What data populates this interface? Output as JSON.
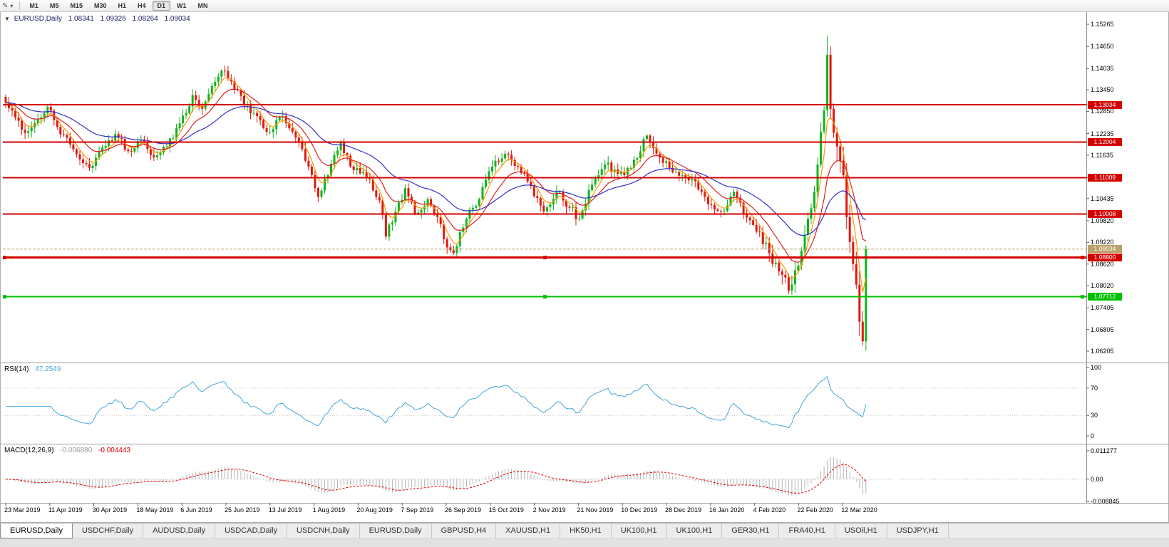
{
  "toolbar": {
    "draw_icon": "✎",
    "caret_icon": "▾",
    "periods": [
      "M1",
      "M5",
      "M15",
      "M30",
      "H1",
      "H4",
      "D1",
      "W1",
      "MN"
    ],
    "active_period": "D1"
  },
  "chart": {
    "title_symbol": "EURUSD,Daily",
    "ohlc": {
      "open": "1.08341",
      "high": "1.09326",
      "low": "1.08264",
      "close": "1.09034"
    }
  },
  "indicators": {
    "rsi_name": "RSI(14)",
    "rsi_value": "47.2549",
    "macd_name": "MACD(12,26,9)",
    "macd_main": "-0.006880",
    "macd_signal": "-0.004443"
  },
  "tabs": {
    "active_index": 0,
    "items": [
      "EURUSD,Daily",
      "USDCHF,Daily",
      "AUDUSD,Daily",
      "USDCAD,Daily",
      "USDCNH,Daily",
      "EURUSD,Daily",
      "GBPUSD,H4",
      "XAUUSD,H1",
      "HK50,H1",
      "UK100,H1",
      "UK100,H1",
      "GER30,H1",
      "FRA40,H1",
      "USOil,H1",
      "USDJPY,H1"
    ]
  },
  "chart_data": {
    "type": "candlestick+indicators",
    "symbol": "EURUSD",
    "timeframe": "Daily",
    "bars": 268,
    "colors": {
      "up": "#10b41c",
      "down": "#e3170d",
      "axis": "#606060"
    },
    "close_keyframes": [
      [
        0,
        1.131
      ],
      [
        3,
        1.1268
      ],
      [
        6,
        1.1225
      ],
      [
        9,
        1.1252
      ],
      [
        13,
        1.1298
      ],
      [
        16,
        1.1242
      ],
      [
        19,
        1.1212
      ],
      [
        23,
        1.1152
      ],
      [
        26,
        1.1128
      ],
      [
        30,
        1.1185
      ],
      [
        34,
        1.1222
      ],
      [
        38,
        1.1175
      ],
      [
        42,
        1.1205
      ],
      [
        46,
        1.1158
      ],
      [
        50,
        1.1188
      ],
      [
        54,
        1.1252
      ],
      [
        58,
        1.133
      ],
      [
        61,
        1.1292
      ],
      [
        64,
        1.1355
      ],
      [
        67,
        1.1398
      ],
      [
        70,
        1.1368
      ],
      [
        74,
        1.1302
      ],
      [
        78,
        1.1272
      ],
      [
        82,
        1.1228
      ],
      [
        86,
        1.1272
      ],
      [
        90,
        1.1212
      ],
      [
        94,
        1.1132
      ],
      [
        97,
        1.1048
      ],
      [
        100,
        1.1108
      ],
      [
        104,
        1.1198
      ],
      [
        108,
        1.1122
      ],
      [
        112,
        1.1102
      ],
      [
        116,
        1.1038
      ],
      [
        118,
        1.0938
      ],
      [
        121,
        1.1008
      ],
      [
        124,
        1.1072
      ],
      [
        127,
        1.1002
      ],
      [
        131,
        1.1042
      ],
      [
        134,
        1.0992
      ],
      [
        137,
        1.0908
      ],
      [
        139,
        1.0892
      ],
      [
        143,
        1.0988
      ],
      [
        147,
        1.1042
      ],
      [
        151,
        1.1132
      ],
      [
        155,
        1.1168
      ],
      [
        159,
        1.1132
      ],
      [
        163,
        1.1078
      ],
      [
        167,
        1.1008
      ],
      [
        171,
        1.1062
      ],
      [
        175,
        1.1018
      ],
      [
        178,
        1.0988
      ],
      [
        182,
        1.1082
      ],
      [
        186,
        1.1138
      ],
      [
        190,
        1.1112
      ],
      [
        194,
        1.1128
      ],
      [
        199,
        1.1218
      ],
      [
        202,
        1.1168
      ],
      [
        206,
        1.1128
      ],
      [
        210,
        1.1108
      ],
      [
        214,
        1.1092
      ],
      [
        218,
        1.1028
      ],
      [
        222,
        1.1008
      ],
      [
        226,
        1.1062
      ],
      [
        229,
        1.1002
      ],
      [
        233,
        1.0952
      ],
      [
        237,
        1.0892
      ],
      [
        241,
        1.0832
      ],
      [
        243,
        1.0788
      ],
      [
        246,
        1.0858
      ],
      [
        249,
        1.0988
      ],
      [
        252,
        1.1138
      ],
      [
        254,
        1.1288
      ],
      [
        255,
        1.1442
      ],
      [
        256,
        1.1292
      ],
      [
        258,
        1.1188
      ],
      [
        260,
        1.1108
      ],
      [
        261,
        1.0992
      ],
      [
        263,
        1.0862
      ],
      [
        265,
        1.0702
      ],
      [
        266,
        1.0648
      ],
      [
        267,
        1.09034
      ]
    ],
    "forced_wicks": [
      {
        "i": 255,
        "high": 1.1495
      },
      {
        "i": 266,
        "low": 1.0636
      },
      {
        "i": 243,
        "low": 1.0778
      }
    ],
    "moving_averages": [
      {
        "period": 5,
        "color": "#ff9900"
      },
      {
        "period": 13,
        "color": "#e02020"
      },
      {
        "period": 34,
        "color": "#3030cc"
      }
    ],
    "levels": [
      {
        "price": 1.13034,
        "label": "1.13034",
        "color": "#d40000",
        "width": 2,
        "selected": false
      },
      {
        "price": 1.12004,
        "label": "1.12004",
        "color": "#d40000",
        "width": 2,
        "selected": false
      },
      {
        "price": 1.11009,
        "label": "1.11009",
        "color": "#d40000",
        "width": 2,
        "selected": false
      },
      {
        "price": 1.10008,
        "label": "1.10008",
        "color": "#d40000",
        "width": 2,
        "selected": false
      },
      {
        "price": 1.088,
        "label": "1.08800",
        "color": "#d40000",
        "width": 3,
        "selected": true
      },
      {
        "price": 1.07712,
        "label": "1.07712",
        "color": "#00c000",
        "width": 2,
        "selected": true
      }
    ],
    "bid": {
      "price": 1.09034,
      "label": "1.09034",
      "color": "#b8a26a"
    },
    "price_ticks": [
      1.15265,
      1.1465,
      1.14035,
      1.1345,
      1.1285,
      1.12235,
      1.11635,
      1.1102,
      1.10435,
      1.0982,
      1.0922,
      1.0862,
      1.0802,
      1.07405,
      1.06805,
      1.06205
    ],
    "date_labels": [
      "23 Mar 2019",
      "11 Apr 2019",
      "30 Apr 2019",
      "18 May 2019",
      "6 Jun 2019",
      "25 Jun 2019",
      "13 Jul 2019",
      "1 Aug 2019",
      "20 Aug 2019",
      "7 Sep 2019",
      "26 Sep 2019",
      "15 Oct 2019",
      "2 Nov 2019",
      "21 Nov 2019",
      "10 Dec 2019",
      "28 Dec 2019",
      "16 Jan 2020",
      "4 Feb 2020",
      "22 Feb 2020",
      "12 Mar 2020"
    ],
    "rsi": {
      "period": 14,
      "color": "#42a5dd",
      "ticks": [
        100,
        70,
        30,
        0
      ],
      "levels": [
        70,
        30
      ]
    },
    "macd": {
      "hist_color": "#b4b4b4",
      "signal_color": "#e00000",
      "ticks": [
        "0.011277",
        "0.00",
        "-0.008845"
      ],
      "axis_top": 0.011277,
      "axis_bottom": -0.008845
    }
  }
}
